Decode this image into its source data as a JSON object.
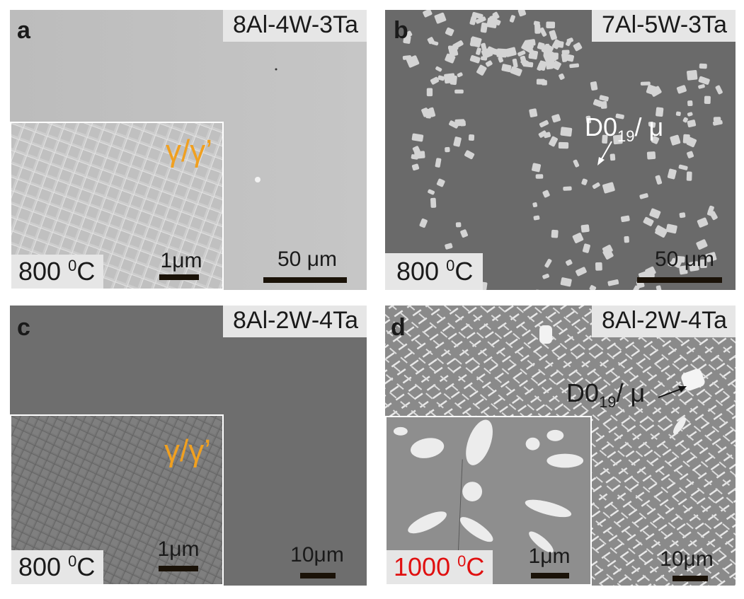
{
  "panels": [
    {
      "letter": "a",
      "composition": "8Al-4W-3Ta",
      "temperature": "800",
      "temp_sup": "0",
      "temp_unit": "C",
      "inset_phase": "γ/γ’",
      "inset_scale": "1μm",
      "scale": "50 μm"
    },
    {
      "letter": "b",
      "composition": "7Al-5W-3Ta",
      "temperature": "800",
      "temp_sup": "0",
      "temp_unit": "C",
      "phase_main": "D0",
      "phase_sub": "19",
      "phase_rest": "/ μ",
      "scale": "50 μm"
    },
    {
      "letter": "c",
      "composition": "8Al-2W-4Ta",
      "temperature": "800",
      "temp_sup": "0",
      "temp_unit": "C",
      "inset_phase": "γ/γ’",
      "inset_scale": "1μm",
      "scale": "10μm"
    },
    {
      "letter": "d",
      "composition": "8Al-2W-4Ta",
      "temperature": "1000",
      "temp_sup": "0",
      "temp_unit": "C",
      "phase_main": "D0",
      "phase_sub": "19",
      "phase_rest": "/ μ",
      "inset_scale": "1μm",
      "scale": "10μm"
    }
  ],
  "colors": {
    "phase_label": "#f0a020",
    "high_temp": "#e01010",
    "scale_bar": "#1a1208"
  }
}
